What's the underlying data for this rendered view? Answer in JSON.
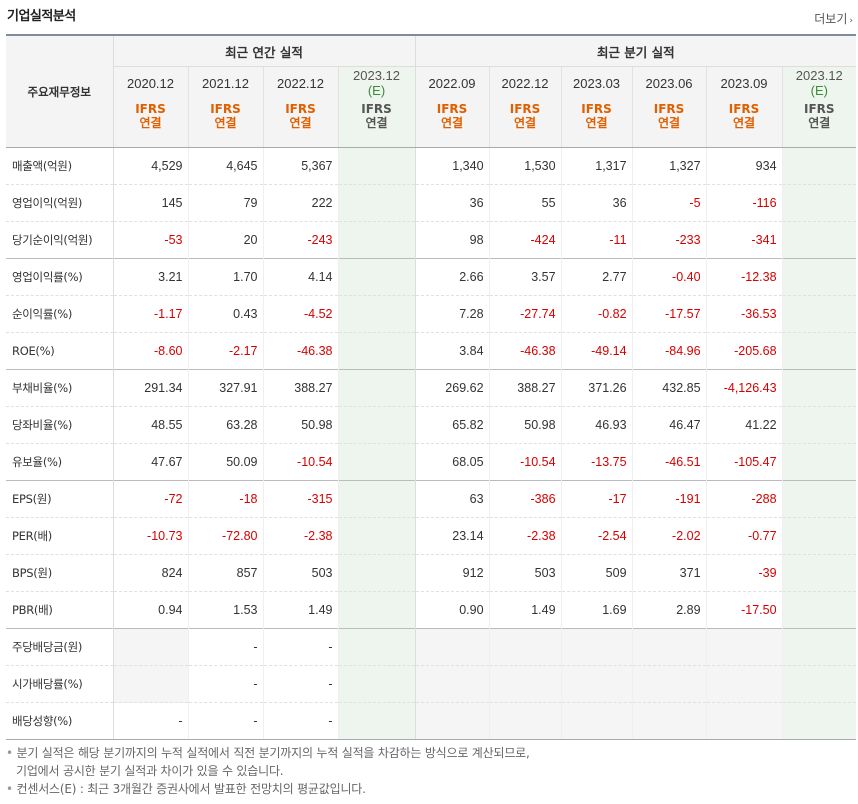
{
  "header": {
    "title": "기업실적분석",
    "more_label": "더보기"
  },
  "table": {
    "row_header": "주요재무정보",
    "groups": {
      "annual": "최근 연간 실적",
      "quarter": "최근 분기 실적"
    },
    "annual_periods": [
      {
        "period": "2020.12",
        "est": "",
        "ifrs": "IFRS",
        "cons": "연결"
      },
      {
        "period": "2021.12",
        "est": "",
        "ifrs": "IFRS",
        "cons": "연결"
      },
      {
        "period": "2022.12",
        "est": "",
        "ifrs": "IFRS",
        "cons": "연결"
      },
      {
        "period": "2023.12",
        "est": "(E)",
        "ifrs": "IFRS",
        "cons": "연결"
      }
    ],
    "quarter_periods": [
      {
        "period": "2022.09",
        "est": "",
        "ifrs": "IFRS",
        "cons": "연결"
      },
      {
        "period": "2022.12",
        "est": "",
        "ifrs": "IFRS",
        "cons": "연결"
      },
      {
        "period": "2023.03",
        "est": "",
        "ifrs": "IFRS",
        "cons": "연결"
      },
      {
        "period": "2023.06",
        "est": "",
        "ifrs": "IFRS",
        "cons": "연결"
      },
      {
        "period": "2023.09",
        "est": "",
        "ifrs": "IFRS",
        "cons": "연결"
      },
      {
        "period": "2023.12",
        "est": "(E)",
        "ifrs": "IFRS",
        "cons": "연결"
      }
    ],
    "rows": [
      {
        "label": "매출액(억원)",
        "v": [
          "4,529",
          "4,645",
          "5,367",
          "",
          "1,340",
          "1,530",
          "1,317",
          "1,327",
          "934",
          ""
        ]
      },
      {
        "label": "영업이익(억원)",
        "v": [
          "145",
          "79",
          "222",
          "",
          "36",
          "55",
          "36",
          "-5",
          "-116",
          ""
        ]
      },
      {
        "label": "당기순이익(억원)",
        "v": [
          "-53",
          "20",
          "-243",
          "",
          "98",
          "-424",
          "-11",
          "-233",
          "-341",
          ""
        ]
      },
      {
        "label": "영업이익률(%)",
        "v": [
          "3.21",
          "1.70",
          "4.14",
          "",
          "2.66",
          "3.57",
          "2.77",
          "-0.40",
          "-12.38",
          ""
        ]
      },
      {
        "label": "순이익률(%)",
        "v": [
          "-1.17",
          "0.43",
          "-4.52",
          "",
          "7.28",
          "-27.74",
          "-0.82",
          "-17.57",
          "-36.53",
          ""
        ]
      },
      {
        "label": "ROE(%)",
        "v": [
          "-8.60",
          "-2.17",
          "-46.38",
          "",
          "3.84",
          "-46.38",
          "-49.14",
          "-84.96",
          "-205.68",
          ""
        ]
      },
      {
        "label": "부채비율(%)",
        "v": [
          "291.34",
          "327.91",
          "388.27",
          "",
          "269.62",
          "388.27",
          "371.26",
          "432.85",
          "-4,126.43",
          ""
        ]
      },
      {
        "label": "당좌비율(%)",
        "v": [
          "48.55",
          "63.28",
          "50.98",
          "",
          "65.82",
          "50.98",
          "46.93",
          "46.47",
          "41.22",
          ""
        ]
      },
      {
        "label": "유보율(%)",
        "v": [
          "47.67",
          "50.09",
          "-10.54",
          "",
          "68.05",
          "-10.54",
          "-13.75",
          "-46.51",
          "-105.47",
          ""
        ]
      },
      {
        "label": "EPS(원)",
        "v": [
          "-72",
          "-18",
          "-315",
          "",
          "63",
          "-386",
          "-17",
          "-191",
          "-288",
          ""
        ]
      },
      {
        "label": "PER(배)",
        "v": [
          "-10.73",
          "-72.80",
          "-2.38",
          "",
          "23.14",
          "-2.38",
          "-2.54",
          "-2.02",
          "-0.77",
          ""
        ]
      },
      {
        "label": "BPS(원)",
        "v": [
          "824",
          "857",
          "503",
          "",
          "912",
          "503",
          "509",
          "371",
          "-39",
          ""
        ]
      },
      {
        "label": "PBR(배)",
        "v": [
          "0.94",
          "1.53",
          "1.49",
          "",
          "0.90",
          "1.49",
          "1.69",
          "2.89",
          "-17.50",
          ""
        ]
      },
      {
        "label": "주당배당금(원)",
        "v": [
          "",
          "-",
          "-",
          "",
          "",
          "",
          "",
          "",
          "",
          ""
        ]
      },
      {
        "label": "시가배당률(%)",
        "v": [
          "",
          "-",
          "-",
          "",
          "",
          "",
          "",
          "",
          "",
          ""
        ]
      },
      {
        "label": "배당성향(%)",
        "v": [
          "-",
          "-",
          "-",
          "",
          "",
          "",
          "",
          "",
          "",
          ""
        ]
      }
    ]
  },
  "notes": [
    "분기 실적은 해당 분기까지의 누적 실적에서 직전 분기까지의 누적 실적을 차감하는 방식으로 계산되므로,",
    "기업에서 공시한 분기 실적과 차이가 있을 수 있습니다.",
    "컨센서스(E) : 최근 3개월간 증권사에서 발표한 전망치의 평균값입니다."
  ],
  "colors": {
    "negative": "#d80000",
    "ifrs": "#e06000",
    "estimate_bg": "#eef5ee"
  }
}
